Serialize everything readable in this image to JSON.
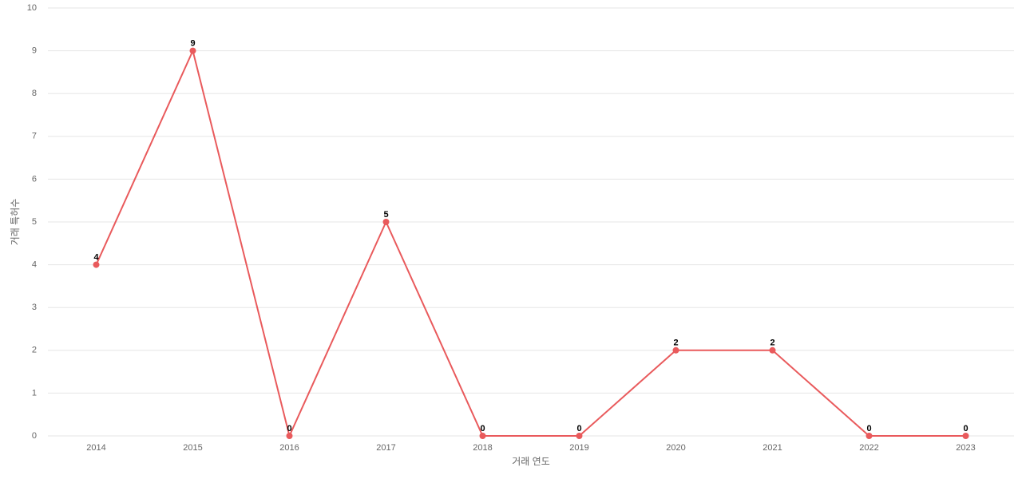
{
  "chart_data": {
    "type": "line",
    "x_label": "거래 연도",
    "y_label": "거래 특허수",
    "categories": [
      "2014",
      "2015",
      "2016",
      "2017",
      "2018",
      "2019",
      "2020",
      "2021",
      "2022",
      "2023"
    ],
    "series": [
      {
        "name": "거래 특허수",
        "color": "#e95a5c",
        "values": [
          4,
          9,
          0,
          5,
          0,
          0,
          2,
          2,
          0,
          0
        ]
      }
    ],
    "ylim": [
      0,
      10
    ],
    "yticks": [
      0,
      1,
      2,
      3,
      4,
      5,
      6,
      7,
      8,
      9,
      10
    ],
    "grid": true,
    "data_labels": true
  }
}
